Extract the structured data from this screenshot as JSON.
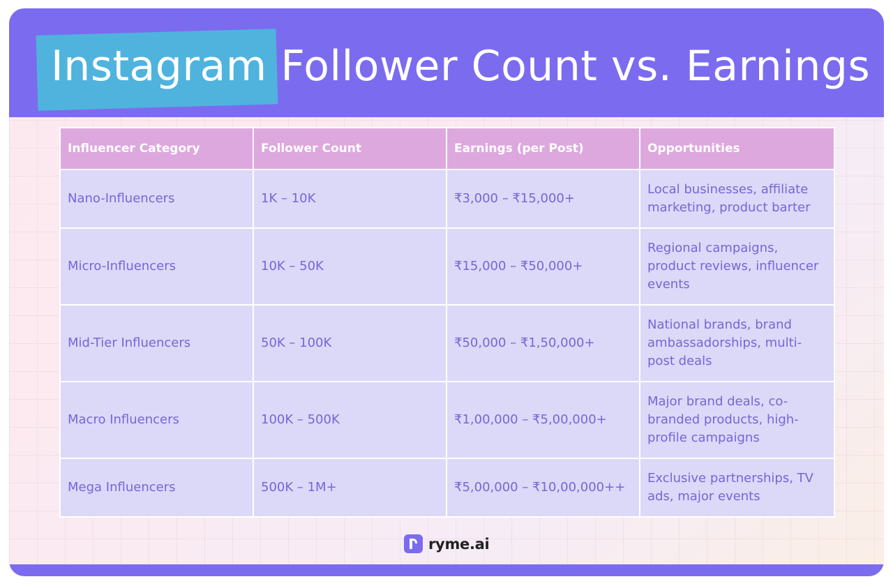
{
  "header": {
    "title_highlight": "Instagram",
    "title_rest": "Follower Count vs. Earnings"
  },
  "table": {
    "columns": [
      "Influencer Category",
      "Follower Count",
      "Earnings (per Post)",
      "Opportunities"
    ],
    "rows": [
      [
        "Nano-Influencers",
        "1K – 10K",
        "₹3,000 – ₹15,000+",
        "Local businesses, affiliate marketing, product barter"
      ],
      [
        "Micro-Influencers",
        "10K – 50K",
        "₹15,000 – ₹50,000+",
        "Regional campaigns, product reviews, influencer events"
      ],
      [
        "Mid-Tier Influencers",
        "50K – 100K",
        "₹50,000 – ₹1,50,000+",
        "National brands, brand ambassadorships, multi-post deals"
      ],
      [
        "Macro Influencers",
        "100K – 500K",
        "₹1,00,000 – ₹5,00,000+",
        "Major brand deals, co-branded products, high-profile campaigns"
      ],
      [
        "Mega Influencers",
        "500K – 1M+",
        "₹5,00,000 – ₹10,00,000++",
        "Exclusive partnerships, TV ads, major events"
      ]
    ]
  },
  "brand": {
    "name": "ryme.ai",
    "icon": "ryme-logo-icon"
  },
  "colors": {
    "header_bg": "#7b6bef",
    "highlight": "#4fb3de",
    "table_header_bg": "#dda8de",
    "table_cell_bg": "#dcd8f8",
    "cell_text": "#7467d6"
  }
}
